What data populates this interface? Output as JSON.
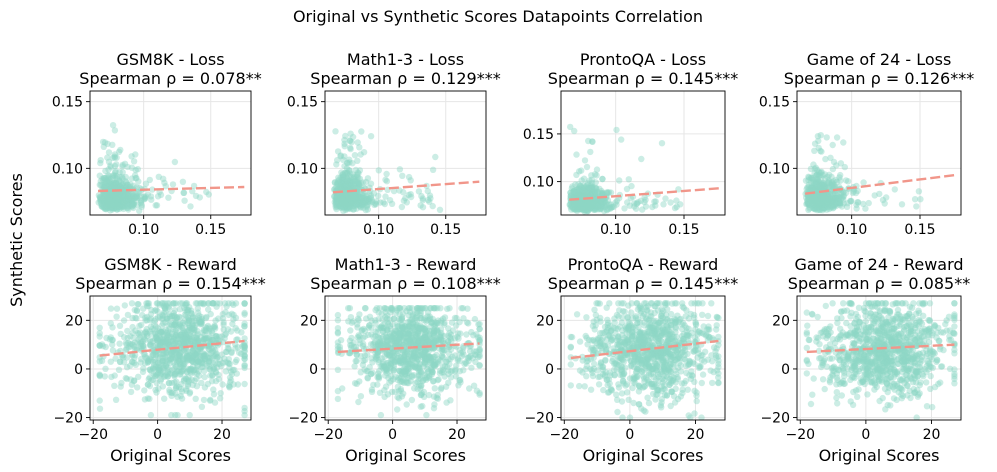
{
  "figure": {
    "title": "Original vs Synthetic Scores Datapoints Correlation",
    "ylabel": "Synthetic Scores"
  },
  "colors": {
    "points": "#8fd6c6",
    "fit": "#f1968a",
    "grid": "#e6e6e6",
    "axis": "#000000"
  },
  "chart_data": [
    {
      "type": "scatter",
      "title": "GSM8K - Loss",
      "subtitle": "Spearman ρ = 0.078**",
      "xlabel": "",
      "xlim": [
        0.06,
        0.18
      ],
      "ylim": [
        0.065,
        0.158
      ],
      "xticks": [
        0.1,
        0.15
      ],
      "xtick_labels": [
        "0.10",
        "0.15"
      ],
      "yticks": [
        0.1,
        0.15
      ],
      "ytick_labels": [
        "0.10",
        "0.15"
      ],
      "cloud": {
        "n": 650,
        "x_mean": 0.083,
        "x_sd": 0.012,
        "y_mean": 0.084,
        "y_sd": 0.011,
        "x_min": 0.066,
        "x_max": 0.175,
        "y_min": 0.068,
        "y_max": 0.152,
        "seed": 11
      },
      "fit": {
        "x": [
          0.066,
          0.175
        ],
        "y": [
          0.083,
          0.086
        ]
      }
    },
    {
      "type": "scatter",
      "title": "Math1-3 - Loss",
      "subtitle": "Spearman ρ = 0.129***",
      "xlabel": "",
      "xlim": [
        0.06,
        0.18
      ],
      "ylim": [
        0.065,
        0.158
      ],
      "xticks": [
        0.1,
        0.15
      ],
      "xtick_labels": [
        "0.10",
        "0.15"
      ],
      "yticks": [
        0.1,
        0.15
      ],
      "ytick_labels": [
        "0.10",
        "0.15"
      ],
      "cloud": {
        "n": 650,
        "x_mean": 0.082,
        "x_sd": 0.011,
        "y_mean": 0.082,
        "y_sd": 0.011,
        "x_min": 0.066,
        "x_max": 0.175,
        "y_min": 0.068,
        "y_max": 0.153,
        "seed": 23
      },
      "fit": {
        "x": [
          0.066,
          0.175
        ],
        "y": [
          0.082,
          0.09
        ]
      }
    },
    {
      "type": "scatter",
      "title": "ProntoQA - Loss",
      "subtitle": "Spearman ρ = 0.145***",
      "xlabel": "",
      "xlim": [
        0.06,
        0.18
      ],
      "ylim": [
        0.065,
        0.195
      ],
      "xticks": [
        0.1,
        0.15
      ],
      "xtick_labels": [
        "0.10",
        "0.15"
      ],
      "yticks": [
        0.1,
        0.15
      ],
      "ytick_labels": [
        "0.10",
        "0.15"
      ],
      "cloud": {
        "n": 650,
        "x_mean": 0.082,
        "x_sd": 0.012,
        "y_mean": 0.083,
        "y_sd": 0.012,
        "x_min": 0.066,
        "x_max": 0.176,
        "y_min": 0.068,
        "y_max": 0.19,
        "seed": 37
      },
      "fit": {
        "x": [
          0.066,
          0.176
        ],
        "y": [
          0.081,
          0.093
        ]
      }
    },
    {
      "type": "scatter",
      "title": "Game of 24 - Loss",
      "subtitle": "Spearman ρ = 0.126***",
      "xlabel": "",
      "xlim": [
        0.06,
        0.18
      ],
      "ylim": [
        0.065,
        0.158
      ],
      "xticks": [
        0.1,
        0.15
      ],
      "xtick_labels": [
        "0.10",
        "0.15"
      ],
      "yticks": [
        0.1,
        0.15
      ],
      "ytick_labels": [
        "0.10",
        "0.15"
      ],
      "cloud": {
        "n": 650,
        "x_mean": 0.082,
        "x_sd": 0.011,
        "y_mean": 0.083,
        "y_sd": 0.011,
        "x_min": 0.066,
        "x_max": 0.176,
        "y_min": 0.068,
        "y_max": 0.152,
        "seed": 41
      },
      "fit": {
        "x": [
          0.066,
          0.176
        ],
        "y": [
          0.081,
          0.095
        ]
      }
    },
    {
      "type": "scatter",
      "title": "GSM8K - Reward",
      "subtitle": "Spearman ρ = 0.154***",
      "xlabel": "Original Scores",
      "xlim": [
        -21,
        29
      ],
      "ylim": [
        -21,
        30
      ],
      "xticks": [
        -20,
        0,
        20
      ],
      "xtick_labels": [
        "−20",
        "0",
        "20"
      ],
      "yticks": [
        -20,
        0,
        20
      ],
      "ytick_labels": [
        "−20",
        "0",
        "20"
      ],
      "cloud": {
        "n": 1000,
        "x_mean": 7,
        "x_sd": 10,
        "y_mean": 9,
        "y_sd": 10,
        "x_min": -18,
        "x_max": 27,
        "y_min": -19,
        "y_max": 27,
        "seed": 53
      },
      "fit": {
        "x": [
          -18,
          27
        ],
        "y": [
          5.5,
          11.5
        ]
      }
    },
    {
      "type": "scatter",
      "title": "Math1-3 - Reward",
      "subtitle": "Spearman ρ = 0.108***",
      "xlabel": "Original Scores",
      "xlim": [
        -21,
        29
      ],
      "ylim": [
        -21,
        30
      ],
      "xticks": [
        -20,
        0,
        20
      ],
      "xtick_labels": [
        "−20",
        "0",
        "20"
      ],
      "yticks": [
        -20,
        0,
        20
      ],
      "ytick_labels": [
        "−20",
        "0",
        "20"
      ],
      "cloud": {
        "n": 1000,
        "x_mean": 6,
        "x_sd": 10,
        "y_mean": 9,
        "y_sd": 9,
        "x_min": -17,
        "x_max": 27,
        "y_min": -19,
        "y_max": 25,
        "seed": 67
      },
      "fit": {
        "x": [
          -17,
          27
        ],
        "y": [
          7,
          10.5
        ]
      }
    },
    {
      "type": "scatter",
      "title": "ProntoQA - Reward",
      "subtitle": "Spearman ρ = 0.145***",
      "xlabel": "Original Scores",
      "xlim": [
        -21,
        29
      ],
      "ylim": [
        -21,
        30
      ],
      "xticks": [
        -20,
        0,
        20
      ],
      "xtick_labels": [
        "−20",
        "0",
        "20"
      ],
      "yticks": [
        -20,
        0,
        20
      ],
      "ytick_labels": [
        "−20",
        "0",
        "20"
      ],
      "cloud": {
        "n": 1000,
        "x_mean": 6,
        "x_sd": 10,
        "y_mean": 8,
        "y_sd": 10,
        "x_min": -18,
        "x_max": 27,
        "y_min": -20,
        "y_max": 27,
        "seed": 79
      },
      "fit": {
        "x": [
          -18,
          27
        ],
        "y": [
          4.5,
          11.5
        ]
      }
    },
    {
      "type": "scatter",
      "title": "Game of 24 - Reward",
      "subtitle": "Spearman ρ = 0.085**",
      "xlabel": "Original Scores",
      "xlim": [
        -21,
        29
      ],
      "ylim": [
        -21,
        30
      ],
      "xticks": [
        -20,
        0,
        20
      ],
      "xtick_labels": [
        "−20",
        "0",
        "20"
      ],
      "yticks": [
        -20,
        0,
        20
      ],
      "ytick_labels": [
        "−20",
        "0",
        "20"
      ],
      "cloud": {
        "n": 1000,
        "x_mean": 6,
        "x_sd": 10,
        "y_mean": 8,
        "y_sd": 10,
        "x_min": -18,
        "x_max": 27,
        "y_min": -20,
        "y_max": 27,
        "seed": 97
      },
      "fit": {
        "x": [
          -18,
          27
        ],
        "y": [
          7,
          10
        ]
      }
    }
  ]
}
